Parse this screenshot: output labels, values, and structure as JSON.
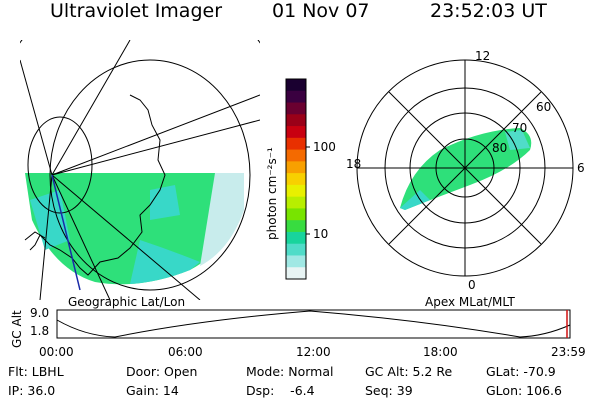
{
  "header": {
    "instrument": "Ultraviolet Imager",
    "date": "01 Nov 07",
    "time": "23:52:03 UT"
  },
  "geo_panel": {
    "label": "Geographic Lat/Lon"
  },
  "colorbar": {
    "unit_label": "photon cm⁻²s⁻¹",
    "ticks": [
      "100",
      "10"
    ],
    "colors": [
      "#1a0030",
      "#3a0040",
      "#6a0030",
      "#9a0018",
      "#c80010",
      "#e83000",
      "#f46a00",
      "#f8a000",
      "#f8d000",
      "#e8f000",
      "#b8ee00",
      "#78e400",
      "#38dc40",
      "#18d49c",
      "#50dcc8",
      "#a0e8e4",
      "#e8f4f4"
    ]
  },
  "polar_panel": {
    "label": "Apex MLat/MLT",
    "mlt_labels": {
      "top": "12",
      "right": "6",
      "bottom": "0",
      "left": "18"
    },
    "mlat_labels": [
      "60",
      "70",
      "80"
    ]
  },
  "altitude_plot": {
    "ylabel": "GC Alt",
    "yticks": [
      "9.0",
      "1.8"
    ],
    "xticks": [
      "00:00",
      "06:00",
      "12:00",
      "18:00",
      "23:59"
    ]
  },
  "status": {
    "row1": [
      "Flt: LBHL",
      "Door: Open",
      "Mode: Normal",
      "GC Alt: 5.2 Re",
      "GLat: -70.9"
    ],
    "row2": [
      "IP: 36.0",
      "Gain: 14",
      "Dsp:    -6.4",
      "Seq: 39",
      "GLon: 106.6"
    ]
  },
  "theme": {
    "aurora_green": "#2ee07a",
    "aurora_cyan": "#38d8c8",
    "aurora_pale": "#c8ecec",
    "axis": "#000000"
  }
}
